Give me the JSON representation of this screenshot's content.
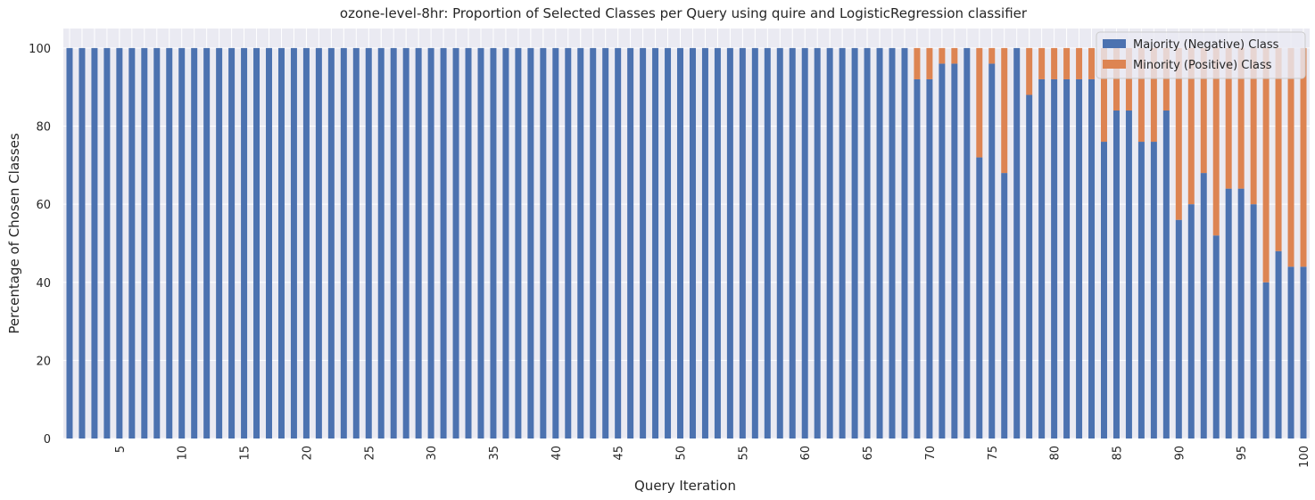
{
  "chart_data": {
    "type": "bar",
    "stacked": true,
    "title": "ozone-level-8hr: Proportion of Selected Classes per Query using quire and LogisticRegression classifier",
    "xlabel": "Query Iteration",
    "ylabel": "Percentage of Chosen Classes",
    "ylim": [
      0,
      105
    ],
    "yticks": [
      0,
      20,
      40,
      60,
      80,
      100
    ],
    "xtick_labels": [
      "5",
      "10",
      "15",
      "20",
      "25",
      "30",
      "35",
      "40",
      "45",
      "50",
      "55",
      "60",
      "65",
      "70",
      "75",
      "80",
      "85",
      "90",
      "95",
      "100"
    ],
    "xtick_positions": [
      5,
      10,
      15,
      20,
      25,
      30,
      35,
      40,
      45,
      50,
      55,
      60,
      65,
      70,
      75,
      80,
      85,
      90,
      95,
      100
    ],
    "categories": [
      1,
      2,
      3,
      4,
      5,
      6,
      7,
      8,
      9,
      10,
      11,
      12,
      13,
      14,
      15,
      16,
      17,
      18,
      19,
      20,
      21,
      22,
      23,
      24,
      25,
      26,
      27,
      28,
      29,
      30,
      31,
      32,
      33,
      34,
      35,
      36,
      37,
      38,
      39,
      40,
      41,
      42,
      43,
      44,
      45,
      46,
      47,
      48,
      49,
      50,
      51,
      52,
      53,
      54,
      55,
      56,
      57,
      58,
      59,
      60,
      61,
      62,
      63,
      64,
      65,
      66,
      67,
      68,
      69,
      70,
      71,
      72,
      73,
      74,
      75,
      76,
      77,
      78,
      79,
      80,
      81,
      82,
      83,
      84,
      85,
      86,
      87,
      88,
      89,
      90,
      91,
      92,
      93,
      94,
      95,
      96,
      97,
      98,
      99,
      100
    ],
    "grid": true,
    "legend_position": "upper right",
    "colors": {
      "majority": "#4c72b0",
      "minority": "#dd8452",
      "background": "#eaeaf2",
      "grid": "#ffffff"
    },
    "series": [
      {
        "name": "Majority (Negative) Class",
        "values": [
          100,
          100,
          100,
          100,
          100,
          100,
          100,
          100,
          100,
          100,
          100,
          100,
          100,
          100,
          100,
          100,
          100,
          100,
          100,
          100,
          100,
          100,
          100,
          100,
          100,
          100,
          100,
          100,
          100,
          100,
          100,
          100,
          100,
          100,
          100,
          100,
          100,
          100,
          100,
          100,
          100,
          100,
          100,
          100,
          100,
          100,
          100,
          100,
          100,
          100,
          100,
          100,
          100,
          100,
          100,
          100,
          100,
          100,
          100,
          100,
          100,
          100,
          100,
          100,
          100,
          100,
          100,
          100,
          92,
          92,
          96,
          96,
          100,
          72,
          96,
          68,
          100,
          88,
          92,
          92,
          92,
          92,
          92,
          76,
          84,
          84,
          76,
          76,
          84,
          56,
          60,
          68,
          52,
          64,
          64,
          60,
          40,
          48,
          44,
          44
        ]
      },
      {
        "name": "Minority (Positive) Class",
        "values": [
          0,
          0,
          0,
          0,
          0,
          0,
          0,
          0,
          0,
          0,
          0,
          0,
          0,
          0,
          0,
          0,
          0,
          0,
          0,
          0,
          0,
          0,
          0,
          0,
          0,
          0,
          0,
          0,
          0,
          0,
          0,
          0,
          0,
          0,
          0,
          0,
          0,
          0,
          0,
          0,
          0,
          0,
          0,
          0,
          0,
          0,
          0,
          0,
          0,
          0,
          0,
          0,
          0,
          0,
          0,
          0,
          0,
          0,
          0,
          0,
          0,
          0,
          0,
          0,
          0,
          0,
          0,
          0,
          8,
          8,
          4,
          4,
          0,
          28,
          4,
          32,
          0,
          12,
          8,
          8,
          8,
          8,
          8,
          24,
          16,
          16,
          24,
          24,
          16,
          44,
          40,
          32,
          48,
          36,
          36,
          40,
          60,
          52,
          56,
          56
        ]
      }
    ]
  }
}
